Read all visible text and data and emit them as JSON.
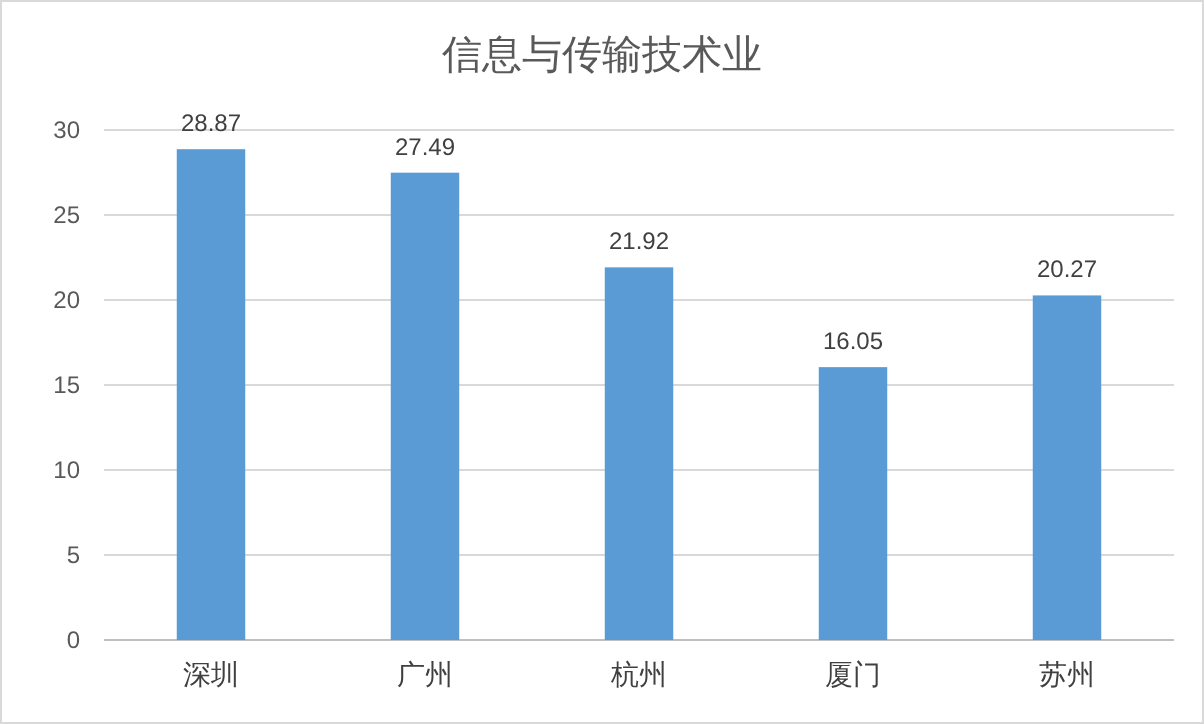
{
  "chart_data": {
    "type": "bar",
    "title": "信息与传输技术业",
    "categories": [
      "深圳",
      "广州",
      "杭州",
      "厦门",
      "苏州"
    ],
    "values": [
      28.87,
      27.49,
      21.92,
      16.05,
      20.27
    ],
    "color": "#5b9bd5",
    "ylim": [
      0,
      30
    ],
    "yticks": [
      0,
      5,
      10,
      15,
      20,
      25,
      30
    ],
    "grid": "y",
    "data_labels": true
  }
}
